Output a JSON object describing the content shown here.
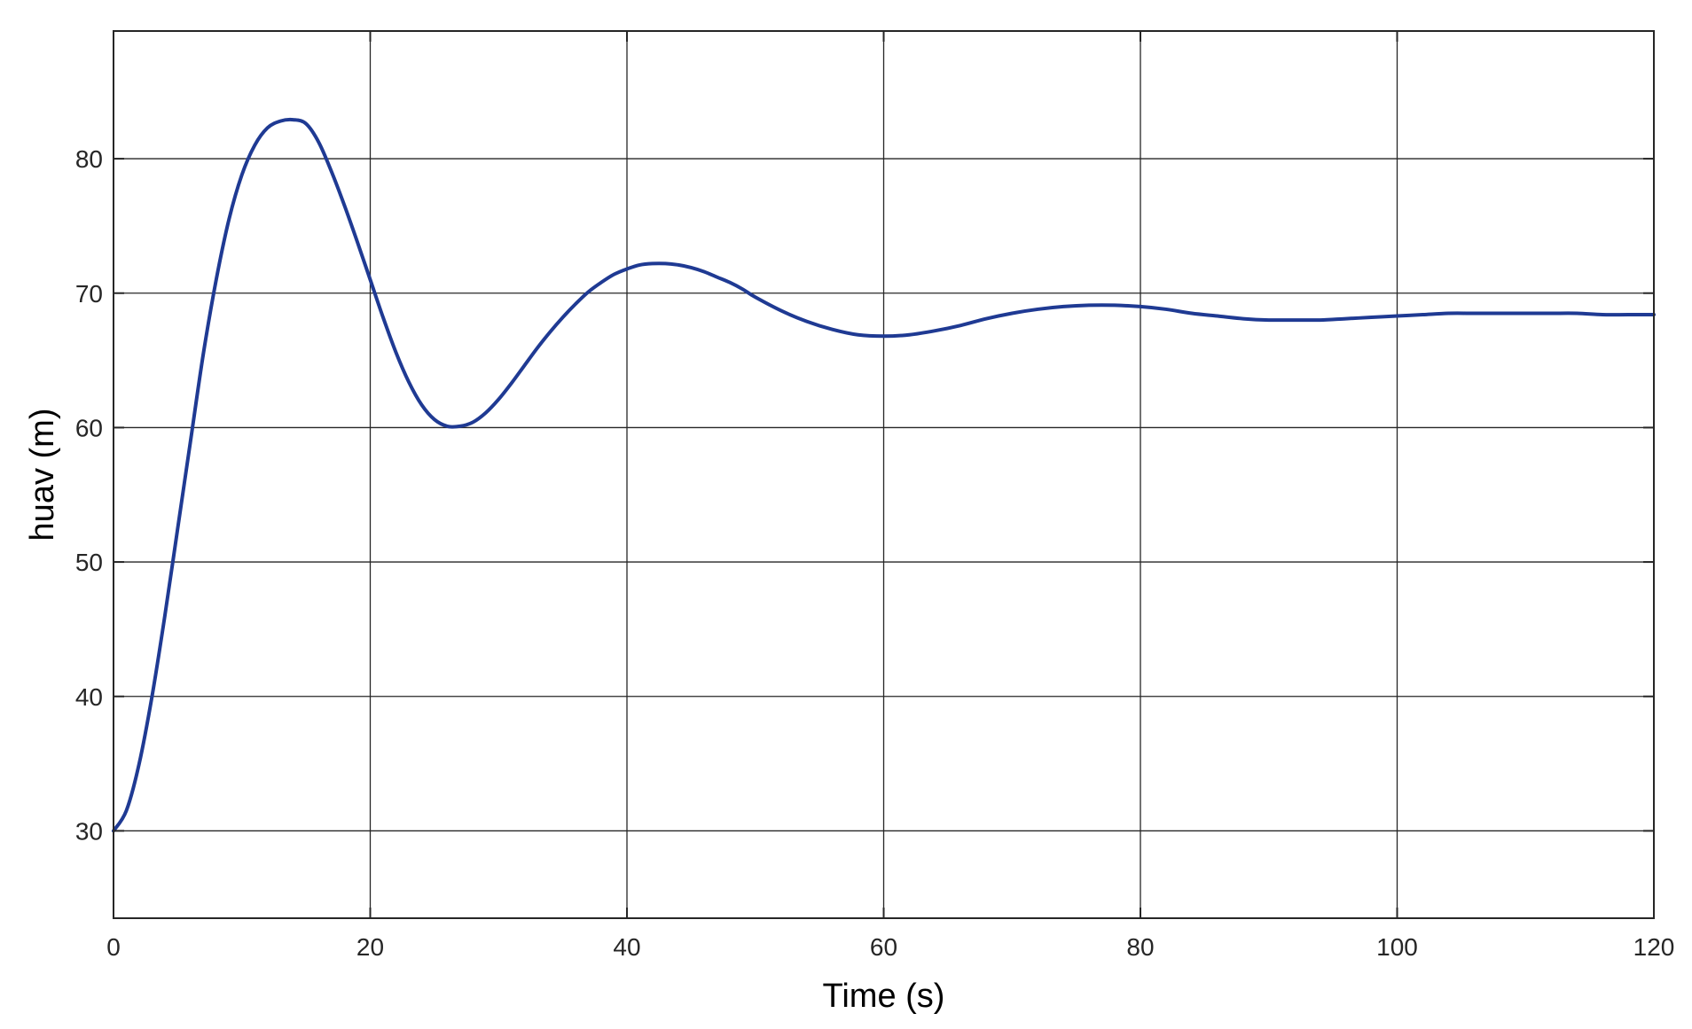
{
  "chart_data": {
    "type": "line",
    "title": "",
    "xlabel": "Time (s)",
    "ylabel": "huav (m)",
    "xlim": [
      0,
      120
    ],
    "ylim": [
      23.5,
      89.5
    ],
    "xticks": [
      0,
      20,
      40,
      60,
      80,
      100,
      120
    ],
    "yticks": [
      30,
      40,
      50,
      60,
      70,
      80
    ],
    "grid": true,
    "series": [
      {
        "color": "#1f3a93",
        "x": [
          0,
          1,
          2,
          3,
          4,
          5,
          6,
          7,
          8,
          9,
          10,
          11,
          12,
          13,
          14,
          15,
          16,
          17,
          18,
          19,
          20,
          21,
          22,
          23,
          24,
          25,
          26,
          27,
          28,
          29,
          30,
          31,
          32,
          33,
          34,
          35,
          36,
          37,
          38,
          39,
          40,
          41,
          42,
          43,
          44,
          45,
          46,
          47,
          48,
          49,
          50,
          52,
          54,
          56,
          58,
          60,
          62,
          64,
          66,
          68,
          70,
          72,
          74,
          76,
          78,
          80,
          82,
          84,
          86,
          88,
          90,
          92,
          94,
          96,
          98,
          100,
          102,
          104,
          106,
          108,
          110,
          112,
          114,
          116,
          118,
          120
        ],
        "y": [
          30,
          31.5,
          35,
          40,
          46,
          52.5,
          59,
          65.5,
          71,
          75.5,
          78.8,
          81,
          82.3,
          82.8,
          82.9,
          82.6,
          81.2,
          79,
          76.5,
          73.8,
          71,
          68.2,
          65.6,
          63.4,
          61.7,
          60.6,
          60.1,
          60.1,
          60.4,
          61.1,
          62.1,
          63.3,
          64.6,
          65.9,
          67.1,
          68.2,
          69.2,
          70.1,
          70.8,
          71.4,
          71.8,
          72.1,
          72.2,
          72.2,
          72.1,
          71.9,
          71.6,
          71.2,
          70.8,
          70.3,
          69.7,
          68.7,
          67.9,
          67.3,
          66.9,
          66.8,
          66.9,
          67.2,
          67.6,
          68.1,
          68.5,
          68.8,
          69,
          69.1,
          69.1,
          69,
          68.8,
          68.5,
          68.3,
          68.1,
          68,
          68,
          68,
          68.1,
          68.2,
          68.3,
          68.4,
          68.5,
          68.5,
          68.5,
          68.5,
          68.5,
          68.5,
          68.4,
          68.4,
          68.4
        ]
      }
    ]
  }
}
